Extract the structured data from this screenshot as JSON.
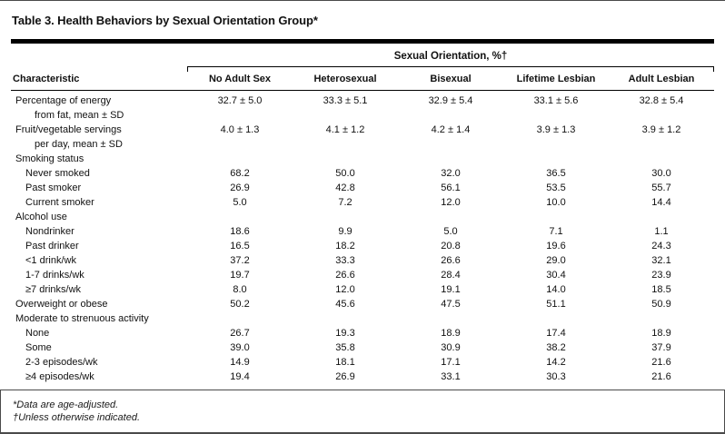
{
  "title": "Table 3. Health Behaviors by Sexual Orientation Group*",
  "table": {
    "spanner": "Sexual Orientation, %†",
    "characteristic_header": "Characteristic",
    "columns": [
      "No Adult Sex",
      "Heterosexual",
      "Bisexual",
      "Lifetime Lesbian",
      "Adult Lesbian"
    ],
    "rows": [
      {
        "label": "Percentage of energy",
        "label2": "from fat, mean ± SD",
        "indent": 0,
        "values": [
          "32.7 ± 5.0",
          "33.3 ± 5.1",
          "32.9 ± 5.4",
          "33.1 ± 5.6",
          "32.8 ± 5.4"
        ]
      },
      {
        "label": "Fruit/vegetable servings",
        "label2": "per day, mean ± SD",
        "indent": 0,
        "values": [
          "4.0 ± 1.3",
          "4.1 ± 1.2",
          "4.2 ± 1.4",
          "3.9 ± 1.3",
          "3.9 ± 1.2"
        ]
      },
      {
        "label": "Smoking status",
        "indent": 0,
        "values": []
      },
      {
        "label": "Never smoked",
        "indent": 1,
        "values": [
          "68.2",
          "50.0",
          "32.0",
          "36.5",
          "30.0"
        ]
      },
      {
        "label": "Past smoker",
        "indent": 1,
        "values": [
          "26.9",
          "42.8",
          "56.1",
          "53.5",
          "55.7"
        ]
      },
      {
        "label": "Current smoker",
        "indent": 1,
        "values": [
          "5.0",
          "7.2",
          "12.0",
          "10.0",
          "14.4"
        ]
      },
      {
        "label": "Alcohol use",
        "indent": 0,
        "values": []
      },
      {
        "label": "Nondrinker",
        "indent": 1,
        "values": [
          "18.6",
          "9.9",
          "5.0",
          "7.1",
          "1.1"
        ]
      },
      {
        "label": "Past drinker",
        "indent": 1,
        "values": [
          "16.5",
          "18.2",
          "20.8",
          "19.6",
          "24.3"
        ]
      },
      {
        "label": "<1 drink/wk",
        "indent": 1,
        "values": [
          "37.2",
          "33.3",
          "26.6",
          "29.0",
          "32.1"
        ]
      },
      {
        "label": "1-7 drinks/wk",
        "indent": 1,
        "values": [
          "19.7",
          "26.6",
          "28.4",
          "30.4",
          "23.9"
        ]
      },
      {
        "label": "≥7 drinks/wk",
        "indent": 1,
        "values": [
          "8.0",
          "12.0",
          "19.1",
          "14.0",
          "18.5"
        ]
      },
      {
        "label": "Overweight or obese",
        "indent": 0,
        "values": [
          "50.2",
          "45.6",
          "47.5",
          "51.1",
          "50.9"
        ]
      },
      {
        "label": "Moderate to strenuous activity",
        "indent": 0,
        "values": []
      },
      {
        "label": "None",
        "indent": 1,
        "values": [
          "26.7",
          "19.3",
          "18.9",
          "17.4",
          "18.9"
        ]
      },
      {
        "label": "Some",
        "indent": 1,
        "values": [
          "39.0",
          "35.8",
          "30.9",
          "38.2",
          "37.9"
        ]
      },
      {
        "label": "2-3 episodes/wk",
        "indent": 1,
        "values": [
          "14.9",
          "18.1",
          "17.1",
          "14.2",
          "21.6"
        ]
      },
      {
        "label": "≥4 episodes/wk",
        "indent": 1,
        "values": [
          "19.4",
          "26.9",
          "33.1",
          "30.3",
          "21.6"
        ]
      }
    ]
  },
  "footnotes": [
    "*Data are age-adjusted.",
    "†Unless otherwise indicated."
  ],
  "colors": {
    "text": "#111111",
    "rule": "#000000",
    "frame": "#4a4a4a"
  }
}
